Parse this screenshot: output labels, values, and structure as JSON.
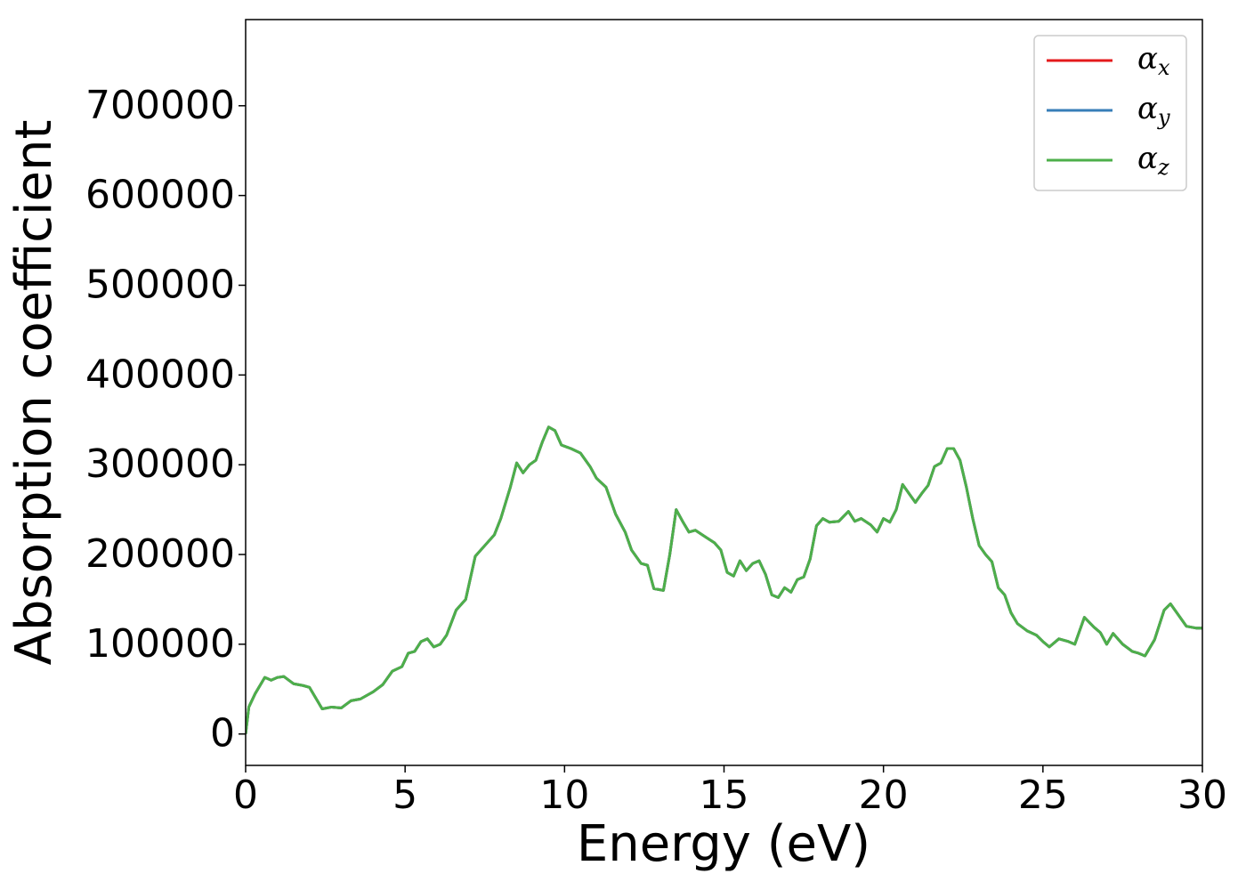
{
  "chart_data": {
    "type": "line",
    "xlabel": "Energy (eV)",
    "ylabel": "Absorption coefficient",
    "x": [
      0,
      0.1,
      0.3,
      0.6,
      0.8,
      1.0,
      1.2,
      1.5,
      1.8,
      2.0,
      2.2,
      2.4,
      2.7,
      3.0,
      3.3,
      3.6,
      4.0,
      4.3,
      4.6,
      4.9,
      5.1,
      5.3,
      5.5,
      5.7,
      5.9,
      6.1,
      6.3,
      6.6,
      6.9,
      7.2,
      7.5,
      7.8,
      8.0,
      8.3,
      8.5,
      8.7,
      8.9,
      9.1,
      9.3,
      9.5,
      9.7,
      9.9,
      10.2,
      10.5,
      10.8,
      11.0,
      11.3,
      11.6,
      11.9,
      12.1,
      12.4,
      12.6,
      12.8,
      13.1,
      13.3,
      13.5,
      13.7,
      13.9,
      14.1,
      14.4,
      14.7,
      14.9,
      15.1,
      15.3,
      15.5,
      15.7,
      15.9,
      16.1,
      16.3,
      16.5,
      16.7,
      16.9,
      17.1,
      17.3,
      17.5,
      17.7,
      17.9,
      18.1,
      18.3,
      18.6,
      18.9,
      19.1,
      19.3,
      19.6,
      19.8,
      20.0,
      20.2,
      20.4,
      20.6,
      20.8,
      21.0,
      21.2,
      21.4,
      21.6,
      21.8,
      22.0,
      22.2,
      22.4,
      22.6,
      22.8,
      23.0,
      23.2,
      23.4,
      23.6,
      23.8,
      24.0,
      24.2,
      24.5,
      24.8,
      25.0,
      25.2,
      25.5,
      25.8,
      26.0,
      26.3,
      26.6,
      26.8,
      27.0,
      27.2,
      27.5,
      27.8,
      28.0,
      28.2,
      28.5,
      28.8,
      29.0,
      29.3,
      29.5,
      29.8,
      30.0
    ],
    "series": [
      {
        "name": "αx",
        "color": "#e41a1c",
        "values": [
          0,
          30000,
          45000,
          63000,
          60000,
          63000,
          64000,
          56000,
          54000,
          52000,
          40000,
          28000,
          30000,
          29000,
          37000,
          39000,
          47000,
          55000,
          70000,
          75000,
          90000,
          92000,
          103000,
          106000,
          97000,
          100000,
          110000,
          138000,
          150000,
          198000,
          210000,
          222000,
          240000,
          275000,
          302000,
          291000,
          300000,
          305000,
          325000,
          342000,
          338000,
          322000,
          318000,
          313000,
          298000,
          285000,
          275000,
          245000,
          225000,
          205000,
          190000,
          188000,
          162000,
          160000,
          200000,
          250000,
          237000,
          225000,
          227000,
          220000,
          213000,
          205000,
          180000,
          176000,
          193000,
          182000,
          190000,
          193000,
          178000,
          155000,
          152000,
          163000,
          158000,
          172000,
          175000,
          195000,
          232000,
          240000,
          236000,
          237000,
          248000,
          237000,
          240000,
          233000,
          225000,
          240000,
          236000,
          250000,
          278000,
          268000,
          258000,
          268000,
          277000,
          298000,
          302000,
          318000,
          318000,
          305000,
          275000,
          240000,
          210000,
          200000,
          192000,
          163000,
          155000,
          135000,
          123000,
          115000,
          110000,
          103000,
          97000,
          106000,
          103000,
          100000,
          130000,
          119000,
          113000,
          100000,
          112000,
          100000,
          92000,
          90000,
          87000,
          105000,
          138000,
          145000,
          130000,
          120000,
          118000,
          118000
        ]
      },
      {
        "name": "αy",
        "color": "#377eb8",
        "values": [
          0,
          30000,
          45000,
          63000,
          60000,
          63000,
          64000,
          56000,
          54000,
          52000,
          40000,
          28000,
          30000,
          29000,
          37000,
          39000,
          47000,
          55000,
          70000,
          75000,
          90000,
          92000,
          103000,
          106000,
          97000,
          100000,
          110000,
          138000,
          150000,
          198000,
          210000,
          222000,
          240000,
          275000,
          302000,
          291000,
          300000,
          305000,
          325000,
          342000,
          338000,
          322000,
          318000,
          313000,
          298000,
          285000,
          275000,
          245000,
          225000,
          205000,
          190000,
          188000,
          162000,
          160000,
          200000,
          250000,
          237000,
          225000,
          227000,
          220000,
          213000,
          205000,
          180000,
          176000,
          193000,
          182000,
          190000,
          193000,
          178000,
          155000,
          152000,
          163000,
          158000,
          172000,
          175000,
          195000,
          232000,
          240000,
          236000,
          237000,
          248000,
          237000,
          240000,
          233000,
          225000,
          240000,
          236000,
          250000,
          278000,
          268000,
          258000,
          268000,
          277000,
          298000,
          302000,
          318000,
          318000,
          305000,
          275000,
          240000,
          210000,
          200000,
          192000,
          163000,
          155000,
          135000,
          123000,
          115000,
          110000,
          103000,
          97000,
          106000,
          103000,
          100000,
          130000,
          119000,
          113000,
          100000,
          112000,
          100000,
          92000,
          90000,
          87000,
          105000,
          138000,
          145000,
          130000,
          120000,
          118000,
          118000
        ]
      },
      {
        "name": "αz",
        "color": "#4daf4a",
        "values": [
          0,
          30000,
          45000,
          63000,
          60000,
          63000,
          64000,
          56000,
          54000,
          52000,
          40000,
          28000,
          30000,
          29000,
          37000,
          39000,
          47000,
          55000,
          70000,
          75000,
          90000,
          92000,
          103000,
          106000,
          97000,
          100000,
          110000,
          138000,
          150000,
          198000,
          210000,
          222000,
          240000,
          275000,
          302000,
          291000,
          300000,
          305000,
          325000,
          342000,
          338000,
          322000,
          318000,
          313000,
          298000,
          285000,
          275000,
          245000,
          225000,
          205000,
          190000,
          188000,
          162000,
          160000,
          200000,
          250000,
          237000,
          225000,
          227000,
          220000,
          213000,
          205000,
          180000,
          176000,
          193000,
          182000,
          190000,
          193000,
          178000,
          155000,
          152000,
          163000,
          158000,
          172000,
          175000,
          195000,
          232000,
          240000,
          236000,
          237000,
          248000,
          237000,
          240000,
          233000,
          225000,
          240000,
          236000,
          250000,
          278000,
          268000,
          258000,
          268000,
          277000,
          298000,
          302000,
          318000,
          318000,
          305000,
          275000,
          240000,
          210000,
          200000,
          192000,
          163000,
          155000,
          135000,
          123000,
          115000,
          110000,
          103000,
          97000,
          106000,
          103000,
          100000,
          130000,
          119000,
          113000,
          100000,
          112000,
          100000,
          92000,
          90000,
          87000,
          105000,
          138000,
          145000,
          130000,
          120000,
          118000,
          118000
        ]
      }
    ],
    "xlim": [
      0,
      30
    ],
    "xticks": [
      0,
      5,
      10,
      15,
      20,
      25,
      30
    ],
    "ylim": [
      -35000,
      796000
    ],
    "yticks": [
      0,
      100000,
      200000,
      300000,
      400000,
      500000,
      600000,
      700000
    ],
    "grid": false,
    "legend": "upper right"
  }
}
